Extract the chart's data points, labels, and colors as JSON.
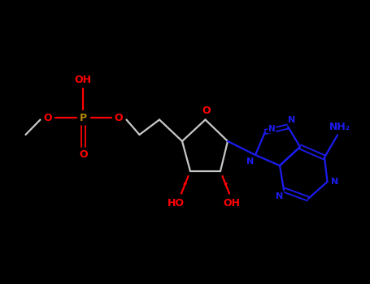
{
  "bg": "#000000",
  "O_color": "#FF0000",
  "N_color": "#1C1CF0",
  "P_color": "#B8860B",
  "bond_color": "#C8C8C8",
  "figsize": [
    4.55,
    3.5
  ],
  "dpi": 100,
  "xlim": [
    0,
    9.1
  ],
  "ylim": [
    0,
    7.0
  ]
}
